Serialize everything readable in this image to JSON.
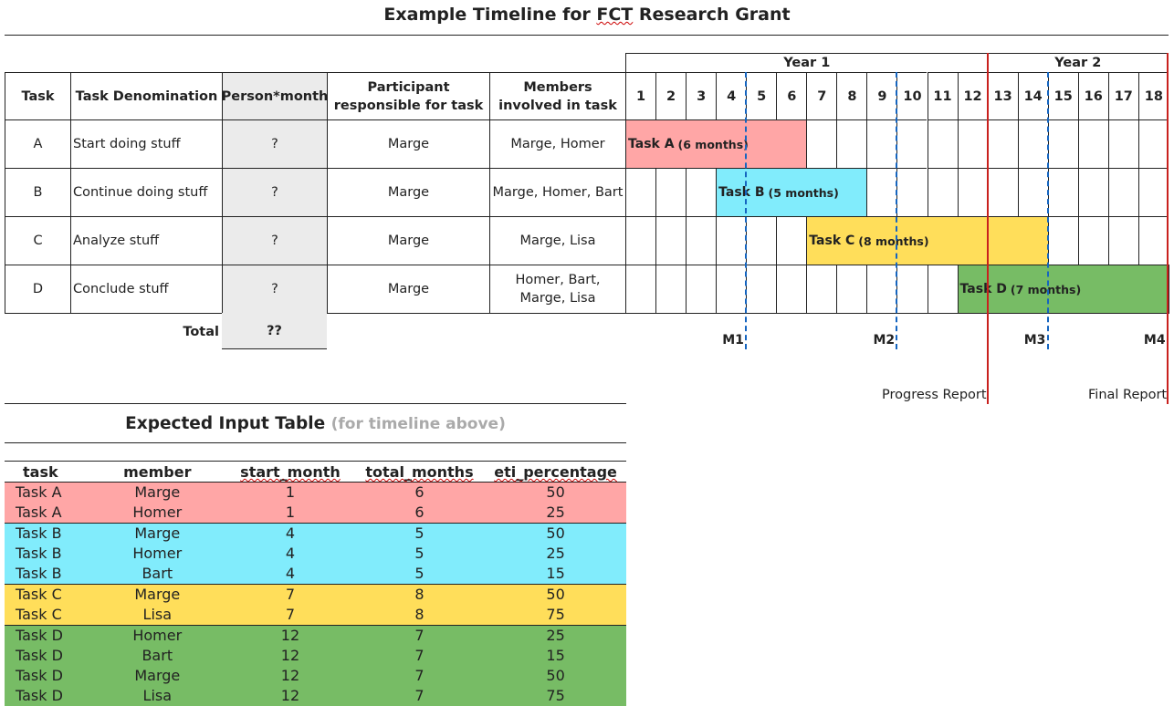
{
  "title": {
    "prefix": "Example Timeline for ",
    "squiggle": "FCT",
    "suffix": " Research Grant"
  },
  "header": {
    "task": "Task",
    "denomination": "Task Denomination",
    "person_month": "Person*month",
    "participant": "Participant responsible for task",
    "members": "Members involved in task",
    "year1": "Year 1",
    "year2": "Year 2"
  },
  "months": [
    "1",
    "2",
    "3",
    "4",
    "5",
    "6",
    "7",
    "8",
    "9",
    "10",
    "11",
    "12",
    "13",
    "14",
    "15",
    "16",
    "17",
    "18"
  ],
  "tasks": [
    {
      "id": "A",
      "name": "Start doing stuff",
      "pm": "?",
      "participant": "Marge",
      "members": "Marge, Homer"
    },
    {
      "id": "B",
      "name": "Continue doing stuff",
      "pm": "?",
      "participant": "Marge",
      "members": "Marge, Homer, Bart"
    },
    {
      "id": "C",
      "name": "Analyze stuff",
      "pm": "?",
      "participant": "Marge",
      "members": "Marge, Lisa"
    },
    {
      "id": "D",
      "name": "Conclude stuff",
      "pm": "?",
      "participant": "Marge",
      "members": "Homer, Bart, Marge, Lisa"
    }
  ],
  "total": {
    "label": "Total",
    "value": "??"
  },
  "bars": [
    {
      "label": "Task A",
      "dur": "(6 months)",
      "start_month": 1,
      "months": 6,
      "color": "#ffa6a6"
    },
    {
      "label": "Task B",
      "dur": "(5 months)",
      "start_month": 4,
      "months": 5,
      "color": "#81ecfc"
    },
    {
      "label": "Task C",
      "dur": "(8 months)",
      "start_month": 7,
      "months": 8,
      "color": "#ffde5a"
    },
    {
      "label": "Task D",
      "dur": "(7 months)",
      "start_month": 12,
      "months": 7,
      "color": "#77bc65"
    }
  ],
  "milestones": [
    {
      "label": "M1",
      "after_month": 4
    },
    {
      "label": "M2",
      "after_month": 9
    },
    {
      "label": "M3",
      "after_month": 14
    },
    {
      "label": "M4",
      "after_month": 18
    }
  ],
  "reports": {
    "progress": "Progress Report",
    "final": "Final Report"
  },
  "input_title": {
    "main": "Expected Input Table",
    "sub": "(for timeline above)"
  },
  "input_table": {
    "columns": [
      "task",
      "member",
      "start_month",
      "total_months",
      "eti_percentage"
    ],
    "rows": [
      [
        "Task A",
        "Marge",
        "1",
        "6",
        "50"
      ],
      [
        "Task A",
        "Homer",
        "1",
        "6",
        "25"
      ],
      [
        "Task B",
        "Marge",
        "4",
        "5",
        "50"
      ],
      [
        "Task B",
        "Homer",
        "4",
        "5",
        "25"
      ],
      [
        "Task B",
        "Bart",
        "4",
        "5",
        "15"
      ],
      [
        "Task C",
        "Marge",
        "7",
        "8",
        "50"
      ],
      [
        "Task C",
        "Lisa",
        "7",
        "8",
        "75"
      ],
      [
        "Task D",
        "Homer",
        "12",
        "7",
        "25"
      ],
      [
        "Task D",
        "Bart",
        "12",
        "7",
        "15"
      ],
      [
        "Task D",
        "Marge",
        "12",
        "7",
        "50"
      ],
      [
        "Task D",
        "Lisa",
        "12",
        "7",
        "75"
      ]
    ]
  },
  "colors": {
    "A": "#ffa6a6",
    "B": "#81ecfc",
    "C": "#ffde5a",
    "D": "#77bc65",
    "milestone": "#1565c0",
    "report": "#c9211e"
  }
}
